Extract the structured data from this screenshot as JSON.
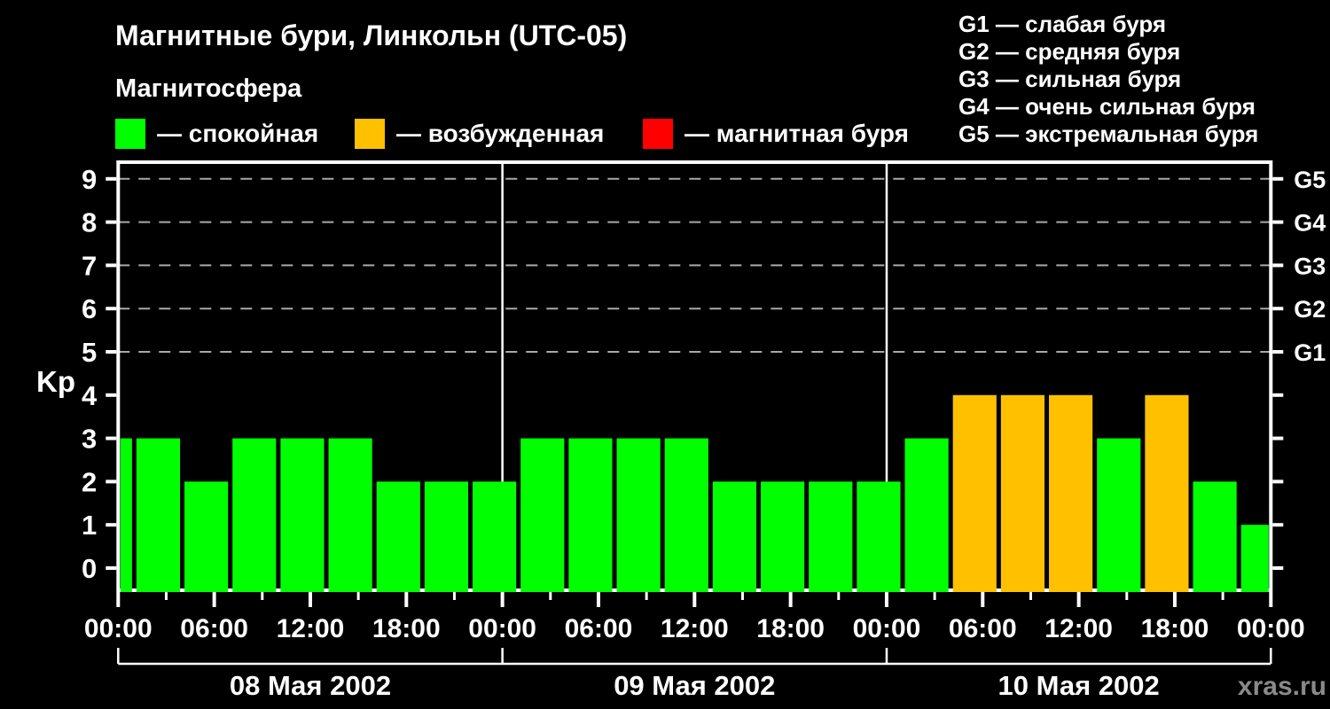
{
  "header": {
    "title": "Магнитные бури, Линкольн (UTC-05)",
    "subtitle": "Магнитосфера"
  },
  "legend": {
    "items": [
      {
        "label": "— спокойная",
        "color": "#00FF00"
      },
      {
        "label": "— возбужденная",
        "color": "#FFC000"
      },
      {
        "label": "— магнитная буря",
        "color": "#FF0000"
      }
    ]
  },
  "storm_scale": {
    "items": [
      "G1 — слабая буря",
      "G2 — средняя буря",
      "G3 — сильная буря",
      "G4 — очень сильная буря",
      "G5 — экстремальная буря"
    ]
  },
  "footer": {
    "watermark": "xras.ru"
  },
  "chart_data": {
    "type": "bar",
    "title": "Магнитные бури, Линкольн (UTC-05)",
    "ylabel": "Kp",
    "ylim": [
      0,
      9
    ],
    "yticks": [
      0,
      1,
      2,
      3,
      4,
      5,
      6,
      7,
      8,
      9
    ],
    "grid_levels": [
      5,
      6,
      7,
      8,
      9
    ],
    "grid_style": "dashed",
    "legend_position": "top",
    "right_axis_labels": [
      {
        "value": 5,
        "label": "G1"
      },
      {
        "value": 6,
        "label": "G2"
      },
      {
        "value": 7,
        "label": "G3"
      },
      {
        "value": 8,
        "label": "G4"
      },
      {
        "value": 9,
        "label": "G5"
      }
    ],
    "x_window_hours": [
      0,
      72
    ],
    "bar_width_hours": 3,
    "utc_offset_hours": -5,
    "x_tick_step_hours": 3,
    "x_label_step_hours": 6,
    "x_tick_labels": [
      {
        "hour": 0,
        "label": "00:00"
      },
      {
        "hour": 6,
        "label": "06:00"
      },
      {
        "hour": 12,
        "label": "12:00"
      },
      {
        "hour": 18,
        "label": "18:00"
      },
      {
        "hour": 24,
        "label": "00:00"
      },
      {
        "hour": 30,
        "label": "06:00"
      },
      {
        "hour": 36,
        "label": "12:00"
      },
      {
        "hour": 42,
        "label": "18:00"
      },
      {
        "hour": 48,
        "label": "00:00"
      },
      {
        "hour": 54,
        "label": "06:00"
      },
      {
        "hour": 60,
        "label": "12:00"
      },
      {
        "hour": 66,
        "label": "18:00"
      },
      {
        "hour": 72,
        "label": "00:00"
      }
    ],
    "days": [
      {
        "label": "08 Мая 2002",
        "start_hour": 0,
        "end_hour": 24
      },
      {
        "label": "09 Мая 2002",
        "start_hour": 24,
        "end_hour": 48
      },
      {
        "label": "10 Мая 2002",
        "start_hour": 48,
        "end_hour": 72
      }
    ],
    "color_rules": {
      "quiet_max_kp": 3,
      "active_max_kp": 4,
      "colors": {
        "quiet": "#00FF00",
        "active": "#FFC000",
        "storm": "#FF0000"
      }
    },
    "bars": [
      {
        "start_hour": -2,
        "kp": 3
      },
      {
        "start_hour": 1,
        "kp": 3
      },
      {
        "start_hour": 4,
        "kp": 2
      },
      {
        "start_hour": 7,
        "kp": 3
      },
      {
        "start_hour": 10,
        "kp": 3
      },
      {
        "start_hour": 13,
        "kp": 3
      },
      {
        "start_hour": 16,
        "kp": 2
      },
      {
        "start_hour": 19,
        "kp": 2
      },
      {
        "start_hour": 22,
        "kp": 2
      },
      {
        "start_hour": 25,
        "kp": 3
      },
      {
        "start_hour": 28,
        "kp": 3
      },
      {
        "start_hour": 31,
        "kp": 3
      },
      {
        "start_hour": 34,
        "kp": 3
      },
      {
        "start_hour": 37,
        "kp": 2
      },
      {
        "start_hour": 40,
        "kp": 2
      },
      {
        "start_hour": 43,
        "kp": 2
      },
      {
        "start_hour": 46,
        "kp": 2
      },
      {
        "start_hour": 49,
        "kp": 3
      },
      {
        "start_hour": 52,
        "kp": 4
      },
      {
        "start_hour": 55,
        "kp": 4
      },
      {
        "start_hour": 58,
        "kp": 4
      },
      {
        "start_hour": 61,
        "kp": 3
      },
      {
        "start_hour": 64,
        "kp": 4
      },
      {
        "start_hour": 67,
        "kp": 2
      },
      {
        "start_hour": 70,
        "kp": 1
      }
    ]
  }
}
